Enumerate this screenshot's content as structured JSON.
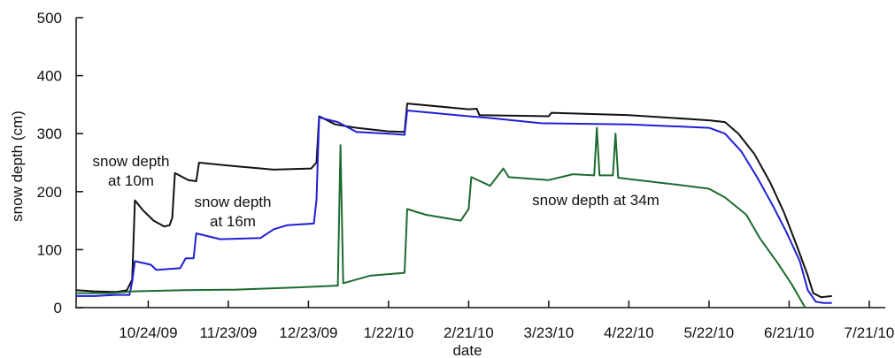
{
  "chart_data": {
    "type": "line",
    "title": "",
    "xlabel": "date",
    "ylabel": "snow depth (cm)",
    "ylim": [
      0,
      500
    ],
    "xlim": [
      "2009-09-27",
      "2010-07-27"
    ],
    "x_ticks": [
      "10/24/09",
      "11/23/09",
      "12/23/09",
      "1/22/10",
      "2/21/10",
      "3/23/10",
      "4/22/10",
      "5/22/10",
      "6/21/10",
      "7/21/10"
    ],
    "y_ticks": [
      0,
      100,
      200,
      300,
      400,
      500
    ],
    "grid": false,
    "annotations": [
      "snow depth at 10m",
      "snow depth at 16m",
      "snow depth at 34m"
    ],
    "annotation_lines": [
      [
        "snow depth",
        "at 10m"
      ],
      [
        "snow depth",
        "at 16m"
      ],
      [
        "snow depth at 34m"
      ]
    ],
    "series": [
      {
        "color": "#111111",
        "points": [
          [
            "2009-09-27",
            30
          ],
          [
            "2009-10-04",
            28
          ],
          [
            "2009-10-12",
            27
          ],
          [
            "2009-10-16",
            30
          ],
          [
            "2009-10-18",
            48
          ],
          [
            "2009-10-19",
            185
          ],
          [
            "2009-10-22",
            168
          ],
          [
            "2009-10-26",
            150
          ],
          [
            "2009-10-30",
            140
          ],
          [
            "2009-11-01",
            142
          ],
          [
            "2009-11-02",
            155
          ],
          [
            "2009-11-03",
            232
          ],
          [
            "2009-11-08",
            220
          ],
          [
            "2009-11-11",
            218
          ],
          [
            "2009-11-12",
            250
          ],
          [
            "2009-11-25",
            244
          ],
          [
            "2009-12-10",
            238
          ],
          [
            "2009-12-24",
            240
          ],
          [
            "2009-12-26",
            250
          ],
          [
            "2009-12-27",
            330
          ],
          [
            "2010-01-02",
            316
          ],
          [
            "2010-01-10",
            310
          ],
          [
            "2010-01-22",
            304
          ],
          [
            "2010-01-28",
            303
          ],
          [
            "2010-01-29",
            352
          ],
          [
            "2010-02-21",
            342
          ],
          [
            "2010-02-24",
            343
          ],
          [
            "2010-02-25",
            332
          ],
          [
            "2010-03-23",
            330
          ],
          [
            "2010-03-24",
            336
          ],
          [
            "2010-04-22",
            332
          ],
          [
            "2010-05-22",
            323
          ],
          [
            "2010-05-28",
            320
          ],
          [
            "2010-06-02",
            300
          ],
          [
            "2010-06-08",
            265
          ],
          [
            "2010-06-14",
            215
          ],
          [
            "2010-06-19",
            165
          ],
          [
            "2010-06-24",
            105
          ],
          [
            "2010-06-28",
            55
          ],
          [
            "2010-06-30",
            25
          ],
          [
            "2010-07-03",
            18
          ],
          [
            "2010-07-07",
            20
          ]
        ]
      },
      {
        "color": "#1f1fd6",
        "points": [
          [
            "2009-09-27",
            20
          ],
          [
            "2009-10-04",
            20
          ],
          [
            "2009-10-12",
            22
          ],
          [
            "2009-10-17",
            22
          ],
          [
            "2009-10-18",
            45
          ],
          [
            "2009-10-19",
            80
          ],
          [
            "2009-10-25",
            74
          ],
          [
            "2009-10-27",
            65
          ],
          [
            "2009-11-05",
            68
          ],
          [
            "2009-11-07",
            85
          ],
          [
            "2009-11-10",
            85
          ],
          [
            "2009-11-11",
            128
          ],
          [
            "2009-11-20",
            118
          ],
          [
            "2009-12-05",
            120
          ],
          [
            "2009-12-10",
            135
          ],
          [
            "2009-12-15",
            142
          ],
          [
            "2009-12-25",
            145
          ],
          [
            "2009-12-26",
            185
          ],
          [
            "2009-12-27",
            328
          ],
          [
            "2010-01-03",
            320
          ],
          [
            "2010-01-10",
            303
          ],
          [
            "2010-01-22",
            300
          ],
          [
            "2010-01-28",
            298
          ],
          [
            "2010-01-29",
            340
          ],
          [
            "2010-02-21",
            330
          ],
          [
            "2010-03-01",
            327
          ],
          [
            "2010-03-20",
            318
          ],
          [
            "2010-04-22",
            316
          ],
          [
            "2010-05-22",
            310
          ],
          [
            "2010-05-28",
            300
          ],
          [
            "2010-06-03",
            270
          ],
          [
            "2010-06-09",
            225
          ],
          [
            "2010-06-15",
            175
          ],
          [
            "2010-06-20",
            130
          ],
          [
            "2010-06-25",
            80
          ],
          [
            "2010-06-28",
            30
          ],
          [
            "2010-07-01",
            10
          ],
          [
            "2010-07-04",
            8
          ],
          [
            "2010-07-07",
            8
          ]
        ]
      },
      {
        "color": "#1c6b30",
        "points": [
          [
            "2009-09-27",
            25
          ],
          [
            "2009-10-10",
            25
          ],
          [
            "2009-10-18",
            28
          ],
          [
            "2009-11-07",
            30
          ],
          [
            "2009-11-25",
            31
          ],
          [
            "2009-12-20",
            35
          ],
          [
            "2010-01-03",
            38
          ],
          [
            "2010-01-04",
            280
          ],
          [
            "2010-01-05",
            42
          ],
          [
            "2010-01-15",
            55
          ],
          [
            "2010-01-28",
            60
          ],
          [
            "2010-01-29",
            170
          ],
          [
            "2010-02-05",
            160
          ],
          [
            "2010-02-18",
            150
          ],
          [
            "2010-02-21",
            170
          ],
          [
            "2010-02-22",
            225
          ],
          [
            "2010-03-01",
            210
          ],
          [
            "2010-03-06",
            240
          ],
          [
            "2010-03-08",
            225
          ],
          [
            "2010-03-23",
            220
          ],
          [
            "2010-04-01",
            230
          ],
          [
            "2010-04-09",
            228
          ],
          [
            "2010-04-10",
            310
          ],
          [
            "2010-04-11",
            228
          ],
          [
            "2010-04-16",
            228
          ],
          [
            "2010-04-17",
            300
          ],
          [
            "2010-04-18",
            224
          ],
          [
            "2010-05-10",
            212
          ],
          [
            "2010-05-22",
            205
          ],
          [
            "2010-05-28",
            190
          ],
          [
            "2010-06-05",
            160
          ],
          [
            "2010-06-10",
            120
          ],
          [
            "2010-06-17",
            75
          ],
          [
            "2010-06-22",
            40
          ],
          [
            "2010-06-27",
            0
          ]
        ]
      }
    ]
  }
}
